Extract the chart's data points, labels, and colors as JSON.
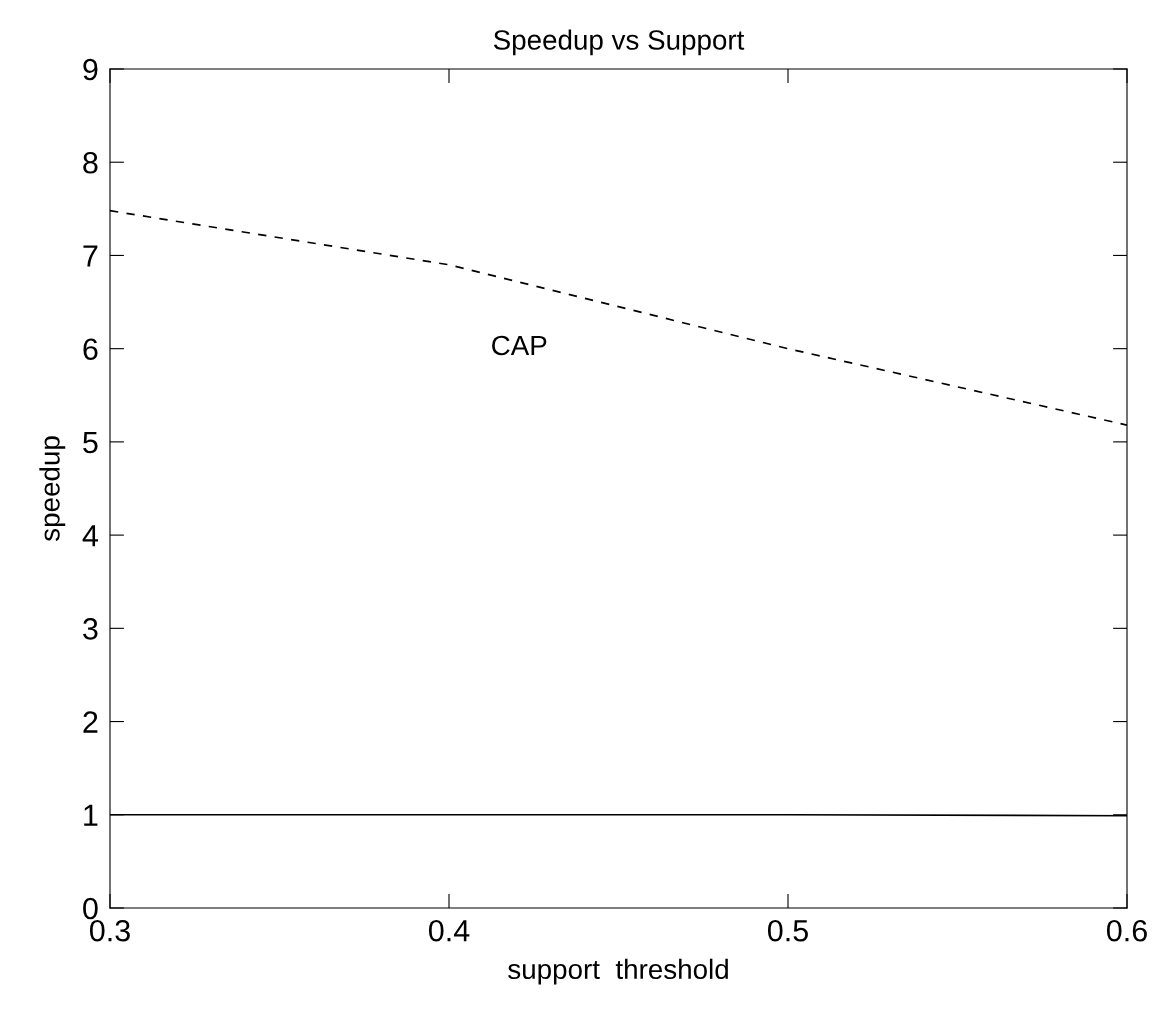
{
  "chart_data": {
    "type": "line",
    "title": "Speedup vs Support",
    "xlabel": "support  threshold",
    "ylabel": "speedup",
    "x": [
      0.3,
      0.4,
      0.5,
      0.6
    ],
    "series": [
      {
        "name": "CAP",
        "color": "#000000",
        "line_style": "dashed",
        "values": [
          7.48,
          6.9,
          6.0,
          5.18
        ]
      },
      {
        "color": "#000000",
        "line_style": "solid",
        "values": [
          1.0,
          1.0,
          1.0,
          0.99
        ]
      }
    ],
    "xlim": [
      0.3,
      0.6
    ],
    "xticks": [
      0.3,
      0.4,
      0.5,
      0.6
    ],
    "ylim": [
      0,
      9
    ],
    "yticks": [
      0,
      1,
      2,
      3,
      4,
      5,
      6,
      7,
      8,
      9
    ],
    "grid": false,
    "marker": "none"
  }
}
